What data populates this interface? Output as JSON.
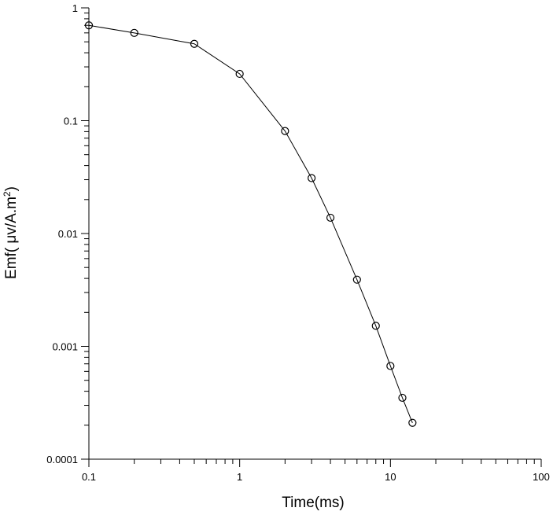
{
  "chart_data": {
    "type": "line",
    "xscale": "log",
    "yscale": "log",
    "xlim": [
      0.1,
      100
    ],
    "ylim": [
      0.0001,
      1
    ],
    "xlabel": "Time(ms)",
    "ylabel_prefix": "Emf( μv/A.m",
    "ylabel_sup": "2",
    "ylabel_suffix": ")",
    "grid": false,
    "x_ticks": [
      "0.1",
      "1",
      "10",
      "100"
    ],
    "y_ticks": [
      "0.0001",
      "0.001",
      "0.01",
      "0.1",
      "1"
    ],
    "series": [
      {
        "marker": "circle",
        "x": [
          0.1,
          0.2,
          0.5,
          1,
          2,
          3,
          4,
          6,
          8,
          10,
          12,
          14
        ],
        "y": [
          0.7,
          0.6,
          0.48,
          0.26,
          0.081,
          0.031,
          0.0138,
          0.0039,
          0.00152,
          0.00067,
          0.00035,
          0.00021
        ]
      }
    ]
  }
}
